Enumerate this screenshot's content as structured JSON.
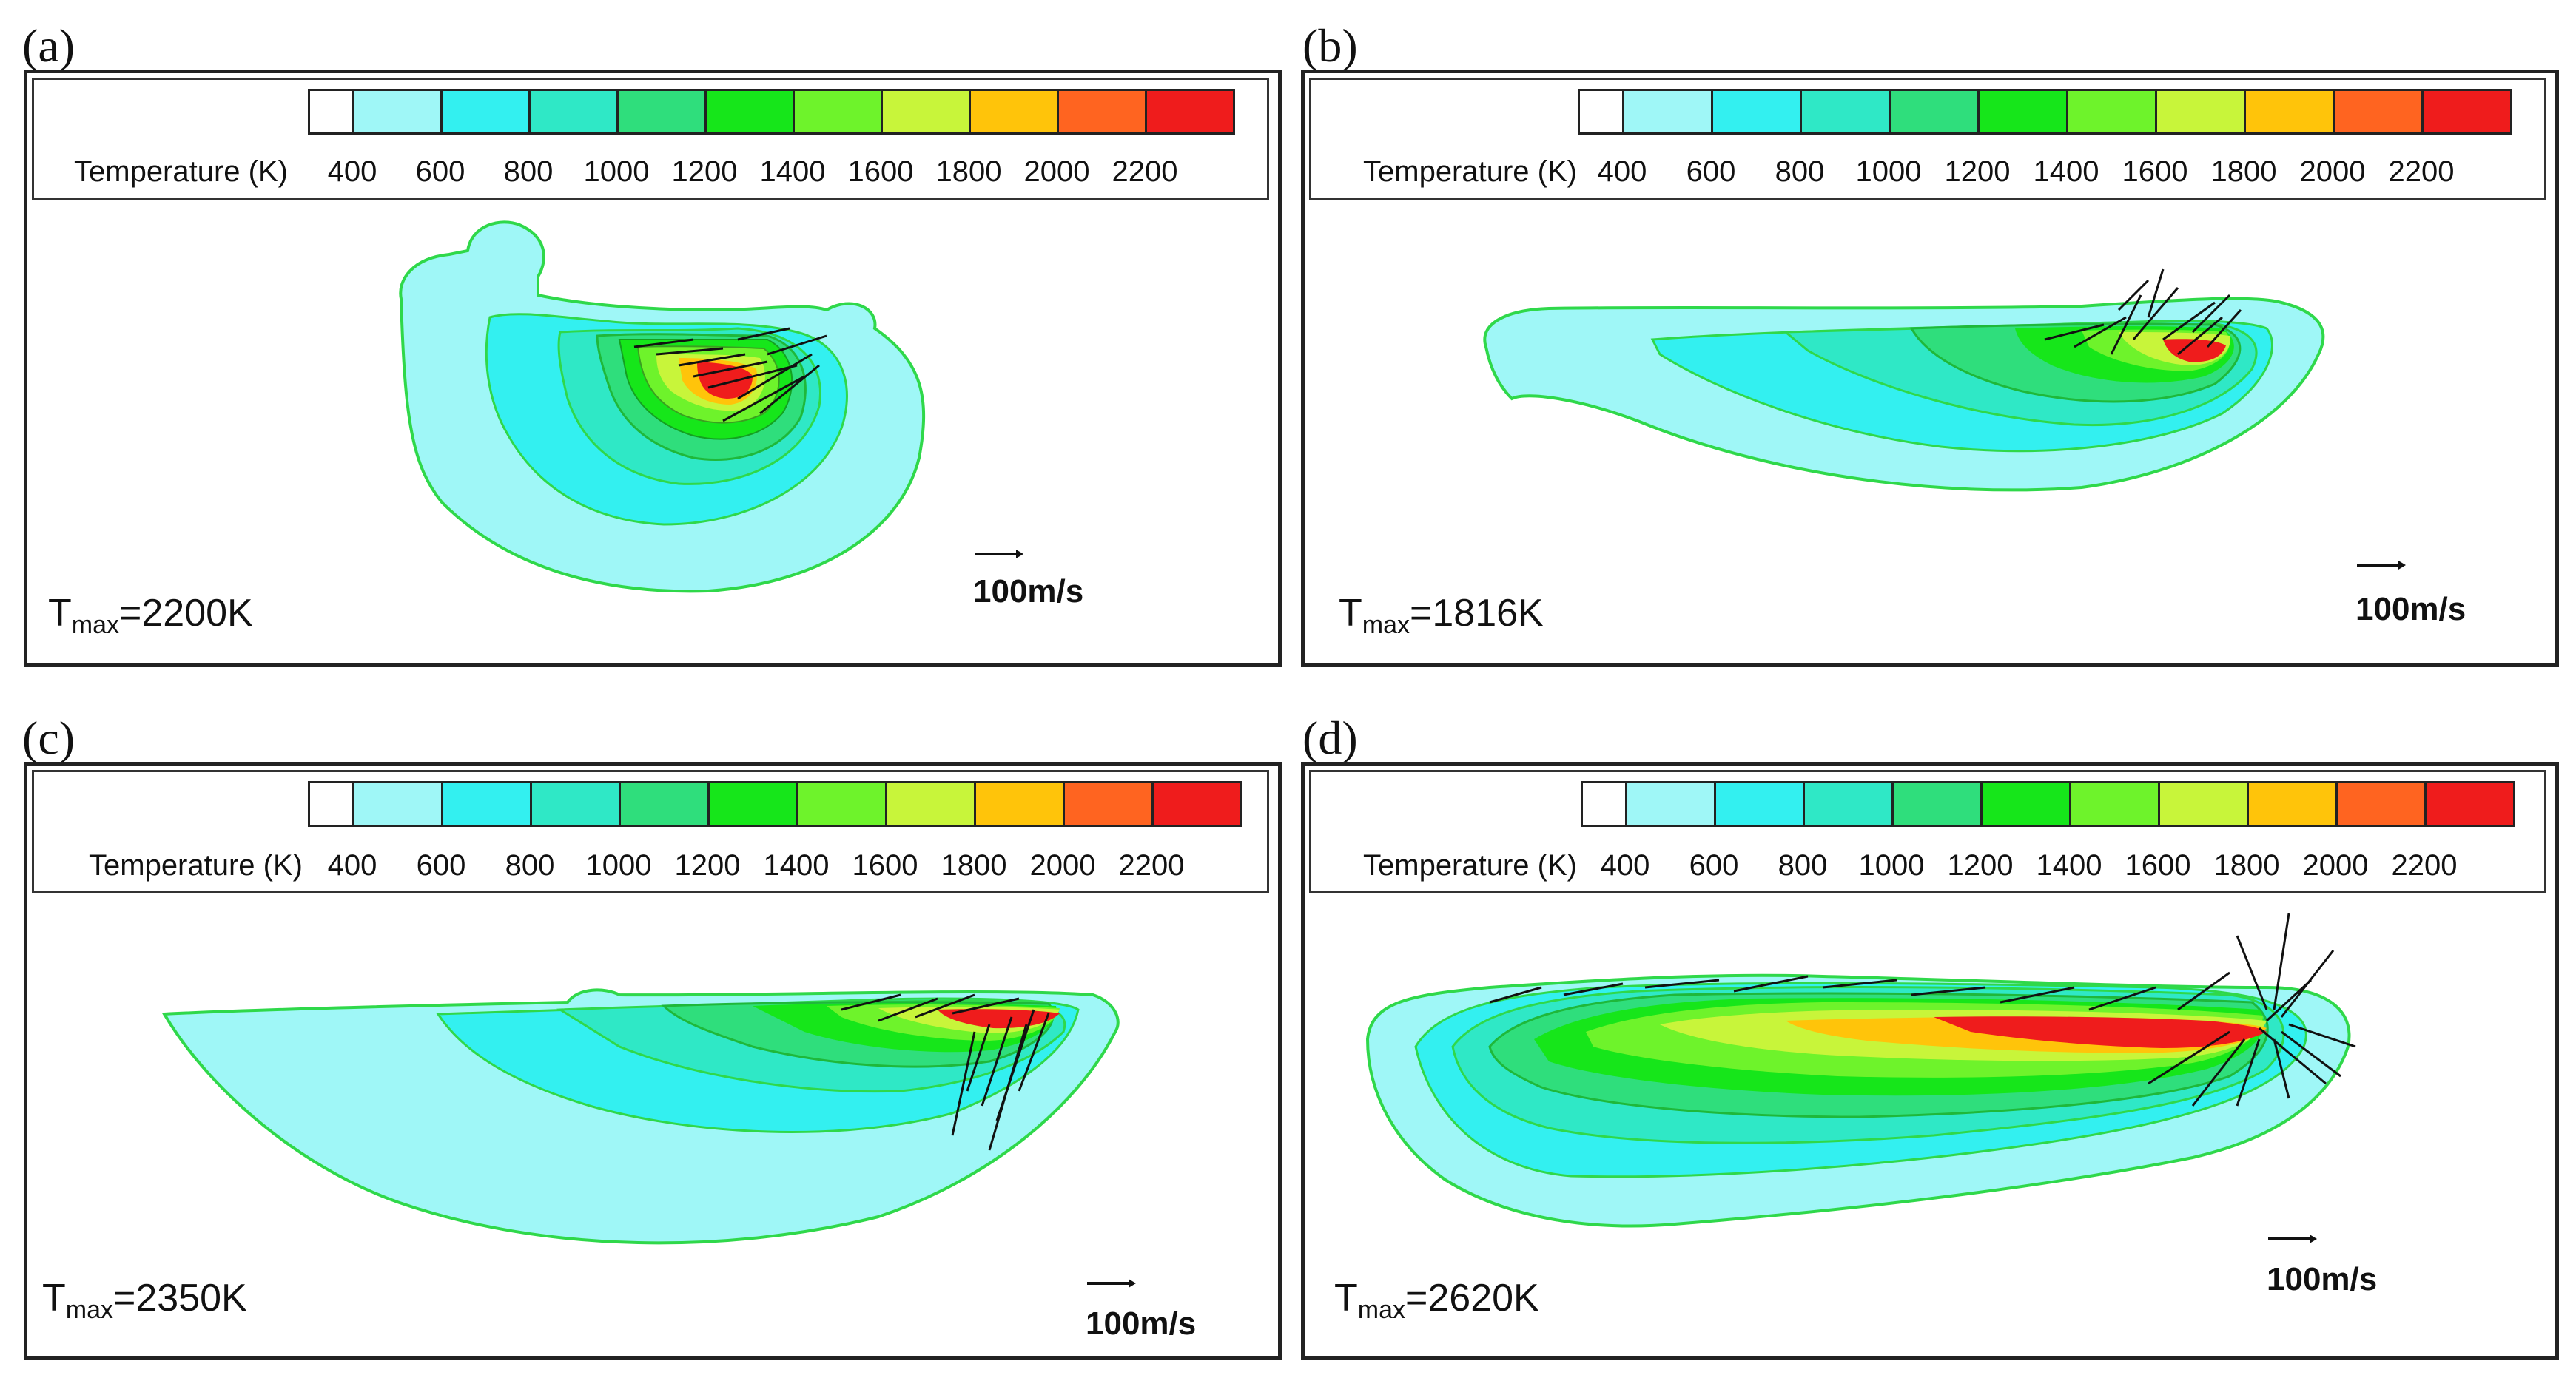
{
  "legend": {
    "title": "Temperature (K)",
    "ticks": [
      "400",
      "600",
      "800",
      "1000",
      "1200",
      "1400",
      "1600",
      "1800",
      "2000",
      "2200"
    ],
    "colors": [
      "#ffffff",
      "#9ff7f7",
      "#33f0f0",
      "#2fe8c6",
      "#2fde7c",
      "#16e61a",
      "#6ef32b",
      "#c8f53a",
      "#ffc40a",
      "#ff6420",
      "#ef1c1c"
    ]
  },
  "panels": [
    {
      "letter": "(a)",
      "tmax_prefix": "T",
      "tmax_sub": "max",
      "tmax_value": "=2200K",
      "scale_label": "100m/s"
    },
    {
      "letter": "(b)",
      "tmax_prefix": "T",
      "tmax_sub": "max",
      "tmax_value": "=1816K",
      "scale_label": "100m/s"
    },
    {
      "letter": "(c)",
      "tmax_prefix": "T",
      "tmax_sub": "max",
      "tmax_value": "=2350K",
      "scale_label": "100m/s"
    },
    {
      "letter": "(d)",
      "tmax_prefix": "T",
      "tmax_sub": "max",
      "tmax_value": "=2620K",
      "scale_label": "100m/s"
    }
  ]
}
